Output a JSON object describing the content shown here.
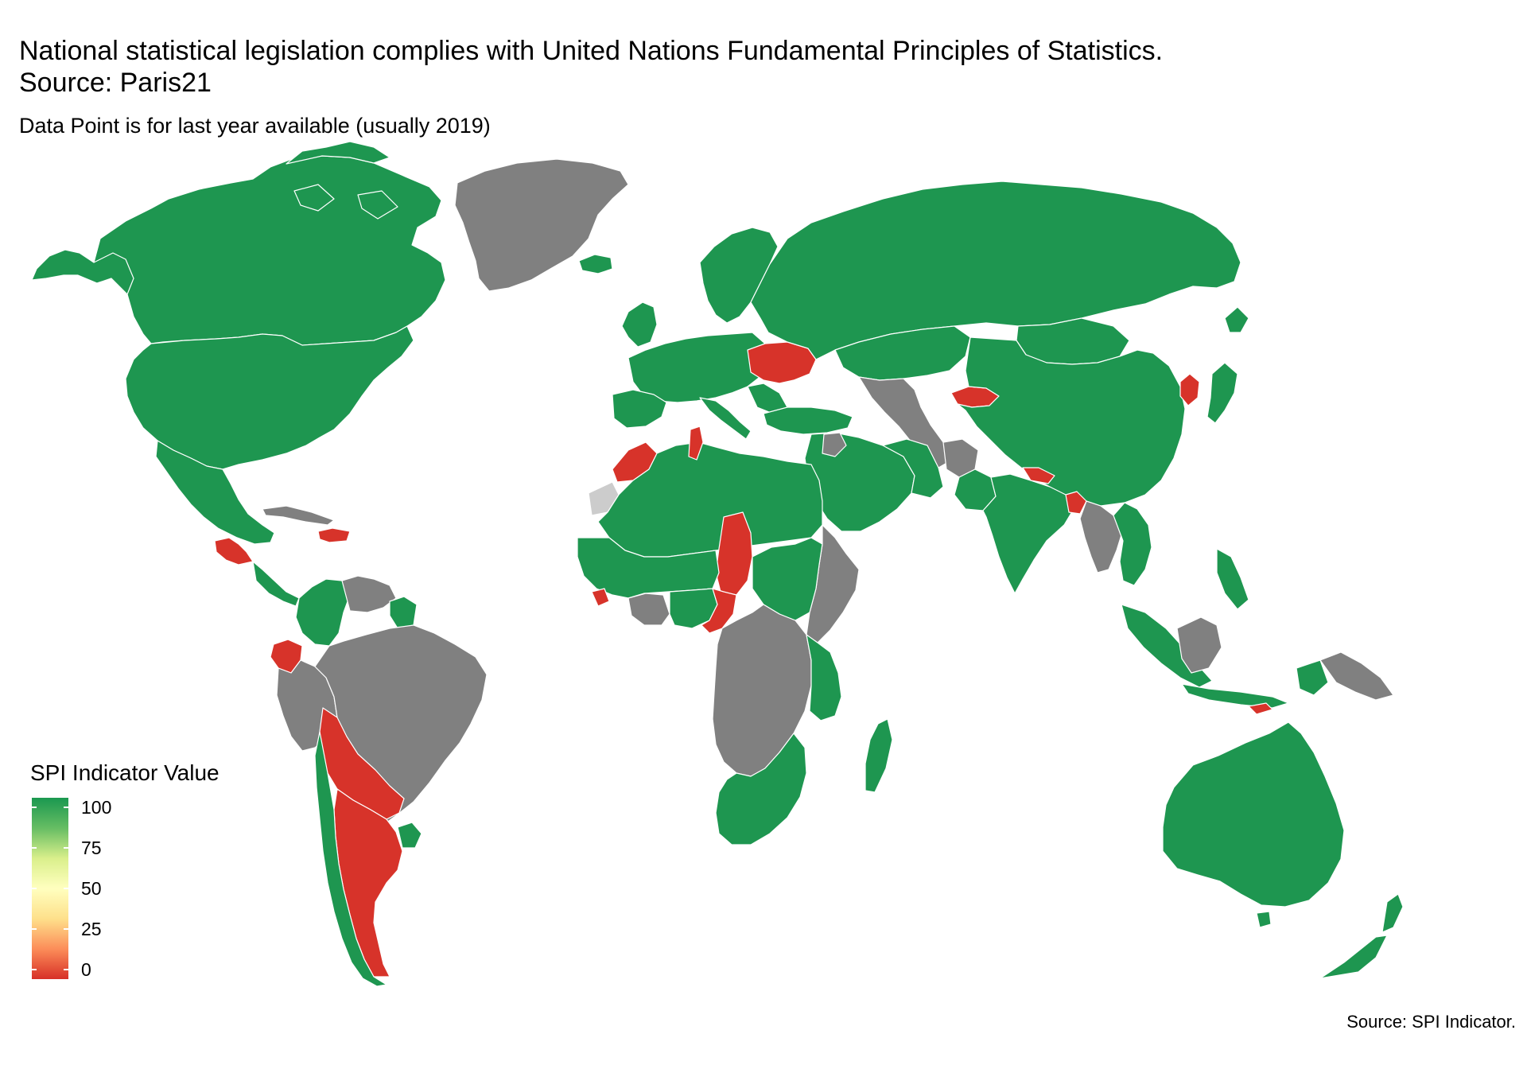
{
  "title_line1": "National statistical legislation complies with United Nations Fundamental Principles of Statistics.",
  "title_line2": "Source: Paris21",
  "subtitle": "Data Point is for last year available (usually 2019)",
  "legend": {
    "title": "SPI Indicator Value",
    "ticks": [
      "100",
      "75",
      "50",
      "25",
      "0"
    ],
    "scale": {
      "min": 0,
      "max": 100
    },
    "gradient_colors": [
      "#d73027",
      "#fc8d59",
      "#fee08b",
      "#ffffbf",
      "#d9ef8b",
      "#66bd63",
      "#1a9850"
    ]
  },
  "caption": "Source: SPI Indicator.",
  "colors": {
    "compliant": "#1e9650",
    "non_compliant": "#d7332a",
    "no_data": "#808080",
    "missing": "#cccccc"
  },
  "map_data": {
    "value_100": [
      "USA",
      "Canada",
      "Mexico",
      "Colombia",
      "Guyana",
      "Suriname",
      "Chile",
      "Uruguay",
      "Russia",
      "China",
      "India",
      "Kazakhstan",
      "Mongolia",
      "Iran",
      "Saudi Arabia",
      "Egypt",
      "Algeria",
      "Libya",
      "Mali",
      "Niger",
      "Nigeria",
      "Sudan",
      "Ethiopia",
      "Tanzania",
      "Kenya",
      "South Africa",
      "Namibia",
      "Botswana",
      "Zimbabwe",
      "Madagascar",
      "Australia",
      "New Zealand",
      "Japan",
      "Indonesia",
      "Philippines",
      "Norway",
      "Sweden",
      "Finland",
      "Iceland",
      "United Kingdom",
      "France",
      "Spain",
      "Germany",
      "Poland",
      "Turkey",
      "Thailand",
      "Vietnam",
      "Malaysia",
      "Pakistan",
      "Iraq",
      "Oman",
      "Yemen"
    ],
    "value_0": [
      "Argentina",
      "Bolivia",
      "Paraguay",
      "Ecuador",
      "Guatemala",
      "Honduras",
      "Nicaragua",
      "El Salvador",
      "Dominican Republic",
      "Morocco",
      "Tunisia",
      "Chad",
      "Cameroon",
      "Sierra Leone",
      "Ukraine",
      "Kyrgyzstan",
      "North Korea",
      "Nepal",
      "Bangladesh",
      "Djibouti",
      "Timor-Leste"
    ],
    "no_data": [
      "Greenland",
      "Brazil",
      "Venezuela",
      "Peru",
      "Cuba",
      "Ghana",
      "Burkina Faso",
      "Central African Republic",
      "DR Congo",
      "Angola",
      "Zambia",
      "Mozambique",
      "Somalia",
      "South Sudan",
      "Afghanistan",
      "Turkmenistan",
      "Syria",
      "Myanmar",
      "Laos",
      "Papua New Guinea",
      "Borneo (Malaysia)"
    ],
    "missing": [
      "Western Sahara",
      "Bhutan",
      "Falkland Islands"
    ]
  }
}
